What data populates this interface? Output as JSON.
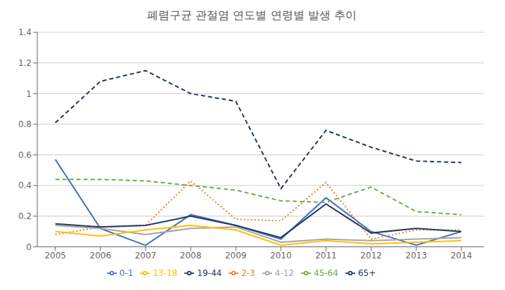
{
  "chart_data": {
    "type": "line",
    "title": "폐렴구균 관절염 연도별 연령별 발생 추이",
    "x": [
      2005,
      2006,
      2007,
      2008,
      2009,
      2010,
      2011,
      2012,
      2013,
      2014
    ],
    "xlim": [
      2004.6,
      2014.5
    ],
    "xticks": [
      2005,
      2006,
      2007,
      2008,
      2009,
      2010,
      2011,
      2012,
      2013,
      2014
    ],
    "ylim": [
      0,
      1.4
    ],
    "yticks": [
      0,
      0.2,
      0.4,
      0.6,
      0.8,
      1,
      1.2,
      1.4
    ],
    "grid": true,
    "legend": "bottom",
    "series": [
      {
        "name": "0-1",
        "color": "#4472C4",
        "line_style": "solid",
        "values": [
          0.57,
          0.12,
          0.01,
          0.21,
          0.14,
          0.05,
          0.32,
          0.1,
          0.01,
          0.1
        ]
      },
      {
        "name": "2-3",
        "color": "#ED7D31",
        "line_style": "dotted",
        "values": [
          0.08,
          0.13,
          0.14,
          0.43,
          0.18,
          0.17,
          0.42,
          0.05,
          0.11,
          0.11
        ]
      },
      {
        "name": "4-12",
        "color": "#A5A5A5",
        "line_style": "solid",
        "values": [
          0.14,
          0.12,
          0.08,
          0.12,
          0.13,
          0.03,
          0.05,
          0.04,
          0.05,
          0.06
        ]
      },
      {
        "name": "13-18",
        "color": "#FFC000",
        "line_style": "solid",
        "values": [
          0.1,
          0.07,
          0.11,
          0.14,
          0.11,
          0.01,
          0.04,
          0.02,
          0.03,
          0.04
        ]
      },
      {
        "name": "19-44",
        "color": "#203864",
        "line_style": "solid",
        "values": [
          0.15,
          0.13,
          0.14,
          0.2,
          0.14,
          0.06,
          0.28,
          0.09,
          0.12,
          0.1
        ]
      },
      {
        "name": "45-64",
        "color": "#70AD47",
        "line_style": "dashed",
        "values": [
          0.44,
          0.44,
          0.43,
          0.4,
          0.37,
          0.3,
          0.29,
          0.39,
          0.23,
          0.21
        ]
      },
      {
        "name": "65+",
        "color": "#1F3864",
        "line_style": "dashed",
        "values": [
          0.81,
          1.08,
          1.15,
          1.0,
          0.95,
          0.38,
          0.76,
          0.65,
          0.56,
          0.55
        ]
      }
    ]
  }
}
